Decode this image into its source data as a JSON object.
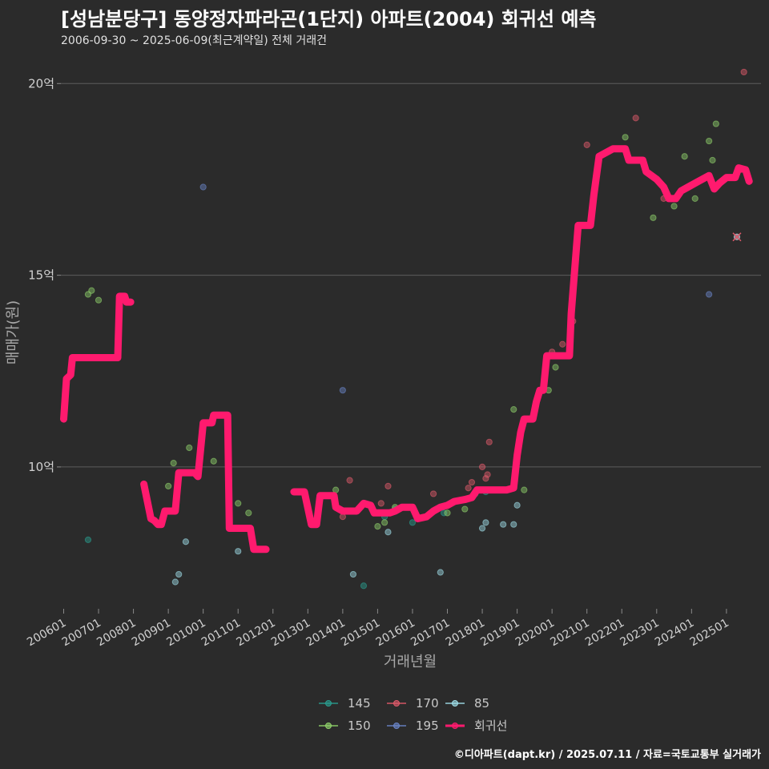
{
  "title": "[성남분당구] 동양정자파라곤(1단지) 아파트(2004) 회귀선 예측",
  "subtitle": "2006-09-30 ~ 2025-06-09(최근계약일) 전체 거래건",
  "credit": "©디아파트(dapt.kr) / 2025.07.11 / 자료=국토교통부 실거래가",
  "chart_data": {
    "type": "scatter",
    "xlabel": "거래년월",
    "ylabel": "매매가(원)",
    "xlim": [
      2005.92,
      2025.99
    ],
    "ylim": [
      6.3,
      20.8
    ],
    "y_unit": "억",
    "yticks": [
      10,
      15,
      20
    ],
    "ytick_labels": [
      "10억",
      "15억",
      "20억"
    ],
    "xticks": [
      2006,
      2007,
      2008,
      2009,
      2010,
      2011,
      2012,
      2013,
      2014,
      2015,
      2016,
      2017,
      2018,
      2019,
      2020,
      2021,
      2022,
      2023,
      2024,
      2025
    ],
    "xtick_labels": [
      "200601",
      "200701",
      "200801",
      "200901",
      "201001",
      "201101",
      "201201",
      "201301",
      "201401",
      "201501",
      "201601",
      "201701",
      "201801",
      "201901",
      "202001",
      "202101",
      "202201",
      "202301",
      "202401",
      "202501"
    ],
    "legend": {
      "position": "bottom",
      "entries": [
        {
          "name": "145",
          "color": "#2a9d8f"
        },
        {
          "name": "150",
          "color": "#8fd16a"
        },
        {
          "name": "170",
          "color": "#e05a6a"
        },
        {
          "name": "195",
          "color": "#6a85c8"
        },
        {
          "name": "85",
          "color": "#9fdde8"
        },
        {
          "name": "회귀선",
          "color": "#ff1a6e"
        }
      ]
    },
    "series": [
      {
        "name": "145",
        "color": "#2a9d8f",
        "points": [
          [
            2006.7,
            8.1
          ],
          [
            2014.6,
            6.9
          ],
          [
            2015.2,
            8.7
          ],
          [
            2015.5,
            8.9
          ],
          [
            2016.0,
            8.55
          ],
          [
            2016.9,
            8.8
          ],
          [
            2017.8,
            9.3
          ],
          [
            2018.1,
            9.35
          ],
          [
            2018.5,
            9.4
          ]
        ]
      },
      {
        "name": "150",
        "color": "#8fd16a",
        "points": [
          [
            2006.7,
            14.5
          ],
          [
            2006.8,
            14.6
          ],
          [
            2007.0,
            14.35
          ],
          [
            2009.0,
            9.5
          ],
          [
            2009.15,
            10.1
          ],
          [
            2009.6,
            10.5
          ],
          [
            2010.3,
            10.15
          ],
          [
            2011.0,
            9.05
          ],
          [
            2011.3,
            8.8
          ],
          [
            2013.8,
            9.4
          ],
          [
            2015.0,
            8.45
          ],
          [
            2015.2,
            8.55
          ],
          [
            2015.5,
            8.95
          ],
          [
            2017.0,
            8.8
          ],
          [
            2017.5,
            8.9
          ],
          [
            2018.6,
            9.4
          ],
          [
            2018.9,
            11.5
          ],
          [
            2019.2,
            9.4
          ],
          [
            2019.9,
            12.0
          ],
          [
            2020.1,
            12.6
          ],
          [
            2022.1,
            18.6
          ],
          [
            2022.4,
            18.0
          ],
          [
            2022.9,
            16.5
          ],
          [
            2023.5,
            16.8
          ],
          [
            2023.8,
            18.1
          ],
          [
            2024.1,
            17.0
          ],
          [
            2024.5,
            18.5
          ],
          [
            2024.6,
            18.0
          ],
          [
            2024.7,
            18.95
          ]
        ]
      },
      {
        "name": "170",
        "color": "#e05a6a",
        "points": [
          [
            2014.0,
            8.7
          ],
          [
            2014.2,
            9.65
          ],
          [
            2015.1,
            9.05
          ],
          [
            2015.3,
            9.5
          ],
          [
            2016.6,
            9.3
          ],
          [
            2017.0,
            9.0
          ],
          [
            2017.6,
            9.45
          ],
          [
            2017.7,
            9.6
          ],
          [
            2018.0,
            10.0
          ],
          [
            2018.1,
            9.7
          ],
          [
            2018.15,
            9.8
          ],
          [
            2018.2,
            10.65
          ],
          [
            2020.0,
            13.0
          ],
          [
            2020.3,
            13.2
          ],
          [
            2020.6,
            13.8
          ],
          [
            2021.0,
            18.4
          ],
          [
            2022.4,
            19.1
          ],
          [
            2023.2,
            17.0
          ],
          [
            2025.3,
            16.0
          ],
          [
            2025.5,
            20.3
          ]
        ]
      },
      {
        "name": "195",
        "color": "#6a85c8",
        "points": [
          [
            2010.0,
            17.3
          ],
          [
            2014.0,
            12.0
          ],
          [
            2024.5,
            14.5
          ]
        ]
      },
      {
        "name": "85",
        "color": "#9fdde8",
        "points": [
          [
            2009.2,
            7.0
          ],
          [
            2009.3,
            7.2
          ],
          [
            2009.5,
            8.05
          ],
          [
            2011.0,
            7.8
          ],
          [
            2014.3,
            7.2
          ],
          [
            2015.3,
            8.3
          ],
          [
            2016.8,
            7.25
          ],
          [
            2018.0,
            8.4
          ],
          [
            2018.1,
            8.55
          ],
          [
            2018.6,
            8.5
          ],
          [
            2018.9,
            8.5
          ],
          [
            2019.0,
            9.0
          ],
          [
            2025.3,
            16.0
          ]
        ]
      }
    ],
    "regression_segments": [
      [
        [
          2006.0,
          11.25
        ],
        [
          2006.08,
          12.3
        ],
        [
          2006.2,
          12.4
        ],
        [
          2006.25,
          12.85
        ],
        [
          2007.3,
          12.85
        ],
        [
          2007.4,
          12.85
        ],
        [
          2007.55,
          12.85
        ],
        [
          2007.6,
          14.45
        ],
        [
          2007.75,
          14.45
        ],
        [
          2007.8,
          14.3
        ],
        [
          2007.92,
          14.3
        ]
      ],
      [
        [
          2008.3,
          9.55
        ],
        [
          2008.5,
          8.65
        ],
        [
          2008.6,
          8.6
        ],
        [
          2008.7,
          8.5
        ],
        [
          2008.8,
          8.5
        ],
        [
          2008.9,
          8.85
        ],
        [
          2009.2,
          8.85
        ],
        [
          2009.3,
          9.85
        ],
        [
          2009.75,
          9.85
        ],
        [
          2009.85,
          9.75
        ],
        [
          2010.0,
          11.15
        ],
        [
          2010.25,
          11.15
        ],
        [
          2010.3,
          11.35
        ],
        [
          2010.7,
          11.35
        ],
        [
          2010.75,
          8.4
        ],
        [
          2011.35,
          8.4
        ],
        [
          2011.45,
          7.85
        ],
        [
          2011.8,
          7.85
        ]
      ],
      [
        [
          2012.6,
          9.35
        ],
        [
          2012.9,
          9.35
        ],
        [
          2013.1,
          8.5
        ],
        [
          2013.25,
          8.5
        ],
        [
          2013.35,
          9.25
        ],
        [
          2013.75,
          9.25
        ],
        [
          2013.8,
          8.95
        ],
        [
          2014.0,
          8.85
        ],
        [
          2014.4,
          8.85
        ],
        [
          2014.6,
          9.05
        ],
        [
          2014.8,
          9.0
        ],
        [
          2014.9,
          8.8
        ],
        [
          2015.35,
          8.8
        ],
        [
          2015.5,
          8.85
        ],
        [
          2015.7,
          8.95
        ],
        [
          2016.0,
          8.95
        ],
        [
          2016.15,
          8.65
        ],
        [
          2016.4,
          8.7
        ],
        [
          2016.6,
          8.85
        ],
        [
          2016.8,
          8.95
        ],
        [
          2017.0,
          9.0
        ],
        [
          2017.2,
          9.1
        ],
        [
          2017.5,
          9.15
        ],
        [
          2017.7,
          9.2
        ],
        [
          2017.85,
          9.4
        ],
        [
          2018.3,
          9.4
        ],
        [
          2018.7,
          9.4
        ],
        [
          2018.9,
          9.45
        ],
        [
          2019.0,
          10.3
        ],
        [
          2019.1,
          10.9
        ],
        [
          2019.2,
          11.25
        ],
        [
          2019.45,
          11.25
        ],
        [
          2019.55,
          11.7
        ],
        [
          2019.65,
          12.0
        ],
        [
          2019.75,
          12.0
        ],
        [
          2019.85,
          12.9
        ],
        [
          2020.5,
          12.9
        ],
        [
          2020.55,
          14.0
        ],
        [
          2020.75,
          16.3
        ],
        [
          2021.1,
          16.3
        ],
        [
          2021.2,
          17.1
        ],
        [
          2021.35,
          18.1
        ],
        [
          2021.55,
          18.2
        ],
        [
          2021.75,
          18.3
        ],
        [
          2022.1,
          18.3
        ],
        [
          2022.2,
          18.0
        ],
        [
          2022.6,
          18.0
        ],
        [
          2022.7,
          17.7
        ],
        [
          2023.0,
          17.5
        ],
        [
          2023.2,
          17.3
        ],
        [
          2023.35,
          17.0
        ],
        [
          2023.55,
          17.0
        ],
        [
          2023.7,
          17.2
        ],
        [
          2023.9,
          17.3
        ],
        [
          2024.2,
          17.45
        ],
        [
          2024.5,
          17.6
        ],
        [
          2024.65,
          17.25
        ],
        [
          2024.8,
          17.4
        ],
        [
          2025.0,
          17.55
        ],
        [
          2025.25,
          17.55
        ],
        [
          2025.35,
          17.8
        ],
        [
          2025.55,
          17.75
        ],
        [
          2025.65,
          17.45
        ]
      ]
    ]
  }
}
